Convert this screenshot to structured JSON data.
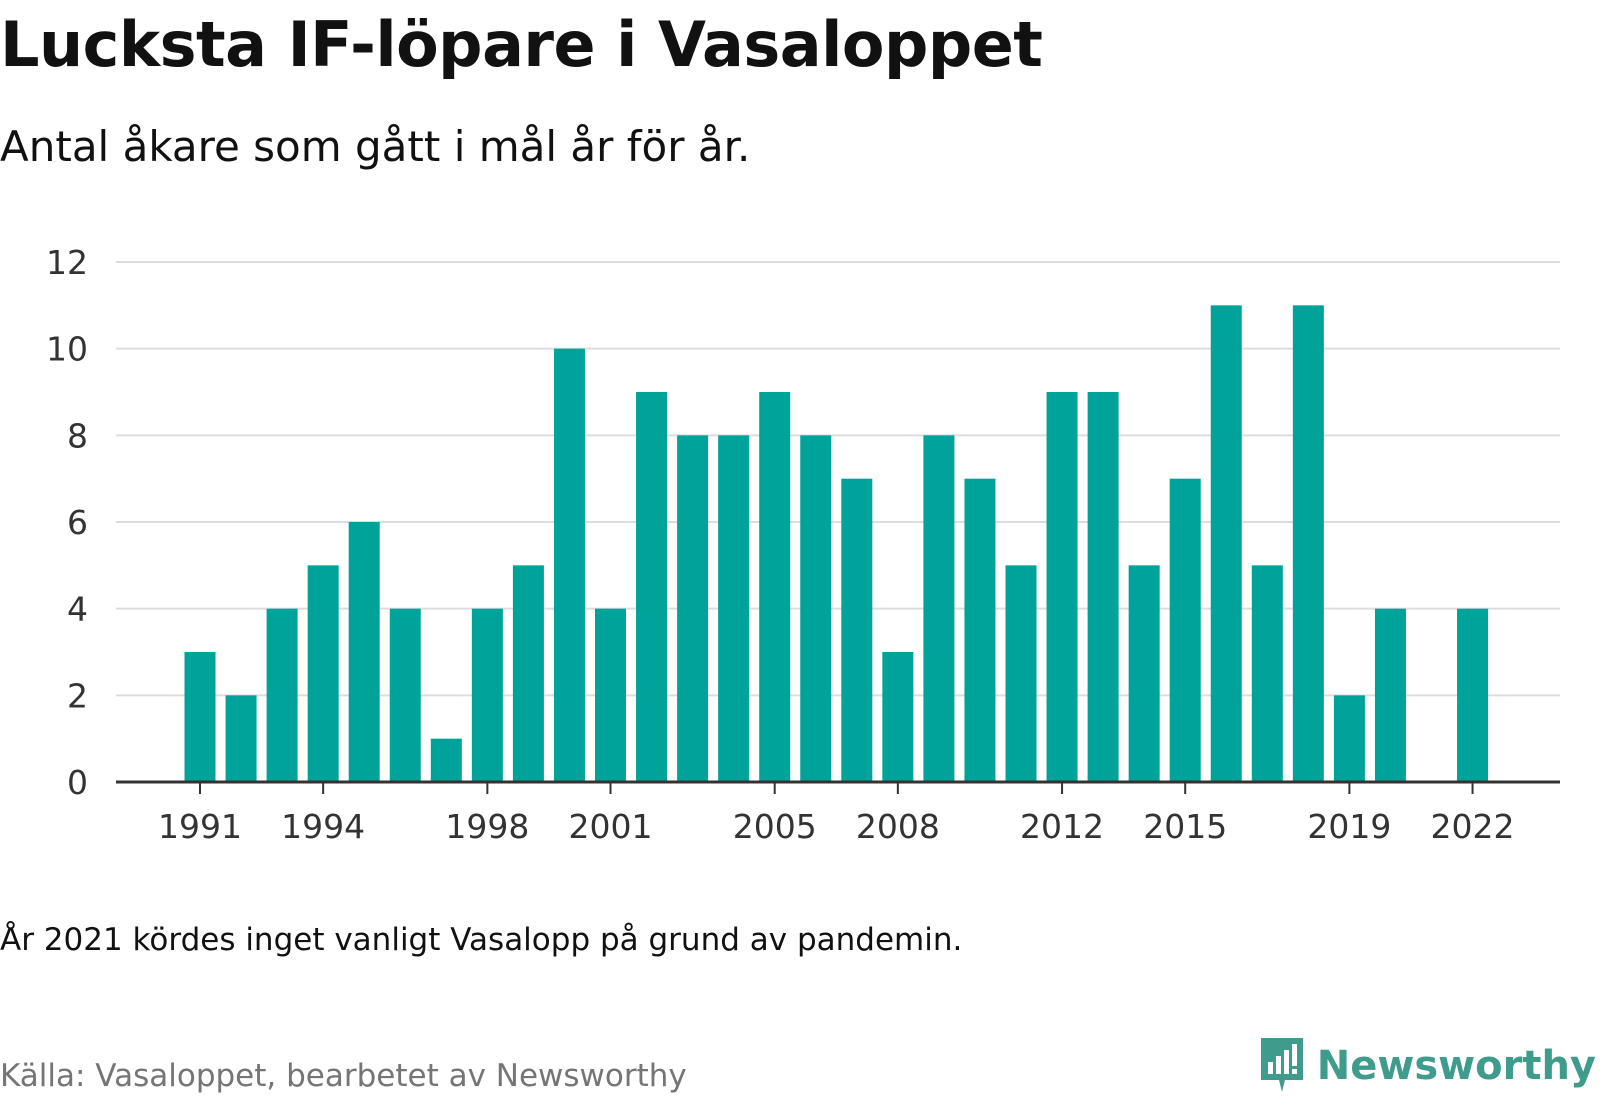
{
  "title": "Lucksta IF-löpare i Vasaloppet",
  "subtitle": "Antal åkare som gått i mål år för år.",
  "note": "År 2021 kördes inget vanligt Vasalopp på grund av pandemin.",
  "source": "Källa: Vasaloppet, bearbetet av Newsworthy",
  "brand": {
    "name": "Newsworthy",
    "icon": "newsworthy-logo-icon",
    "color": "#3f9c8c"
  },
  "colors": {
    "bar": "#00a39a",
    "grid": "#dddddd",
    "axis": "#333333"
  },
  "chart_data": {
    "type": "bar",
    "x": [
      1991,
      1992,
      1993,
      1994,
      1995,
      1996,
      1997,
      1998,
      1999,
      2000,
      2001,
      2002,
      2003,
      2004,
      2005,
      2006,
      2007,
      2008,
      2009,
      2010,
      2011,
      2012,
      2013,
      2014,
      2015,
      2016,
      2017,
      2018,
      2019,
      2020,
      2021,
      2022
    ],
    "values": [
      3,
      2,
      4,
      5,
      6,
      4,
      1,
      4,
      5,
      10,
      4,
      9,
      8,
      8,
      9,
      8,
      7,
      3,
      8,
      7,
      5,
      9,
      9,
      5,
      7,
      11,
      5,
      11,
      2,
      4,
      null,
      4
    ],
    "x_tick_labels": [
      1991,
      1994,
      1998,
      2001,
      2005,
      2008,
      2012,
      2015,
      2019,
      2022
    ],
    "y_ticks": [
      0,
      2,
      4,
      6,
      8,
      10,
      12
    ],
    "ylim": [
      0,
      12
    ],
    "grid": true,
    "xlabel": "",
    "ylabel": ""
  }
}
